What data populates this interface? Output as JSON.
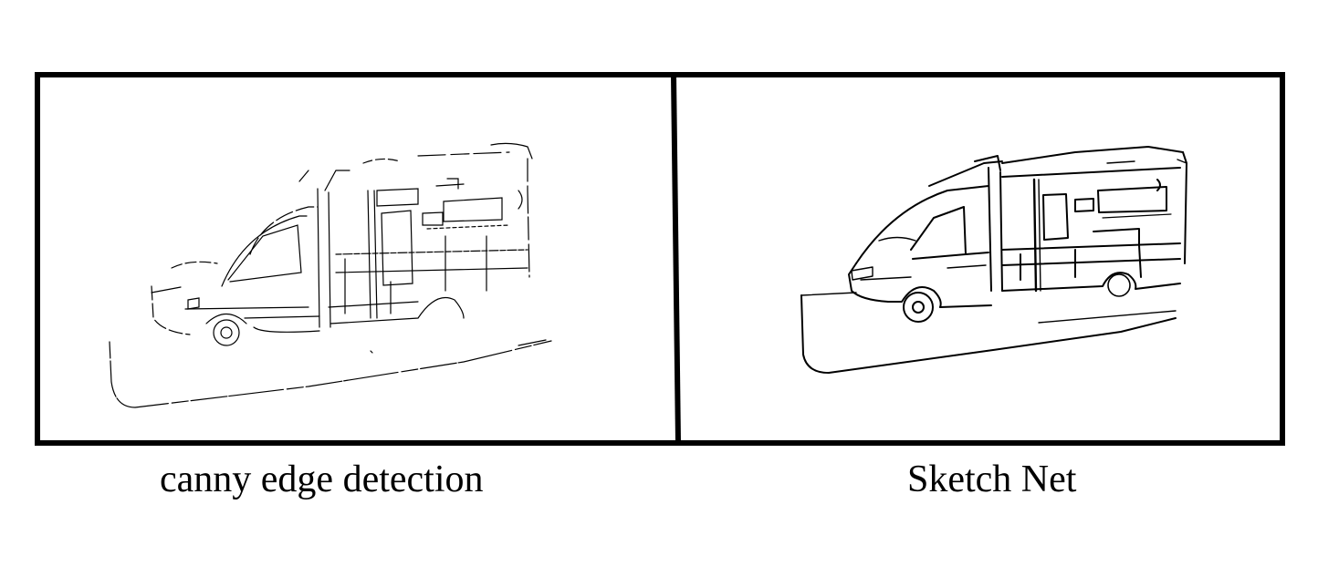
{
  "panels": [
    {
      "caption": "canny edge detection",
      "style": "thin-broken-edges"
    },
    {
      "caption": "Sketch Net",
      "style": "smooth-sketch-lines"
    }
  ],
  "colors": {
    "ink": "#000000",
    "background": "#ffffff"
  }
}
